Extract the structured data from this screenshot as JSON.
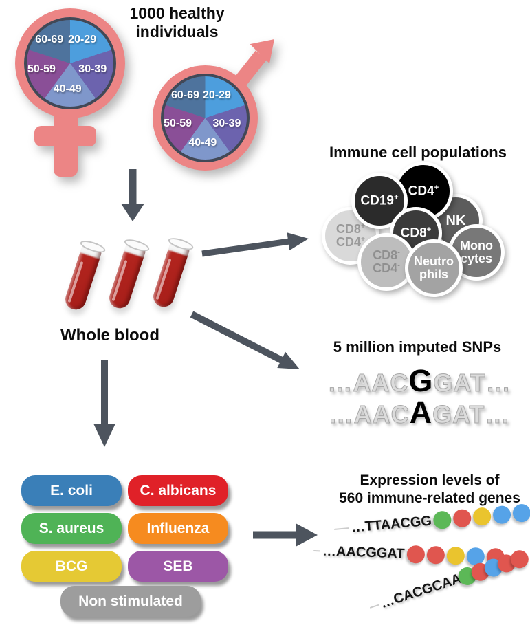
{
  "colors": {
    "pink": "#ec8585",
    "arrow": "#4d545e",
    "dot_palette": {
      "green": "#5cb857",
      "red": "#e0564f",
      "yellow": "#eac42e",
      "blue": "#56a3e8"
    }
  },
  "header": {
    "line1": "1000 healthy",
    "line2": "individuals"
  },
  "age_pie": {
    "slices": [
      {
        "label": "20-29",
        "color": "#4d9edd"
      },
      {
        "label": "30-39",
        "color": "#6c63ae"
      },
      {
        "label": "40-49",
        "color": "#7f97cb"
      },
      {
        "label": "50-59",
        "color": "#8a4f97"
      },
      {
        "label": "60-69",
        "color": "#4e739d"
      }
    ]
  },
  "whole_blood": {
    "label": "Whole blood"
  },
  "immune": {
    "title": "Immune cell populations",
    "cells": [
      {
        "id": "cd19",
        "color": "#2b2b2b",
        "text_color": "#ffffff",
        "lines": [
          {
            "text": "CD19",
            "sup": "+"
          }
        ]
      },
      {
        "id": "cd4",
        "color": "#000000",
        "text_color": "#ffffff",
        "lines": [
          {
            "text": "CD4",
            "sup": "+"
          }
        ]
      },
      {
        "id": "nk",
        "color": "#5c5c5c",
        "text_color": "#ffffff",
        "lines": [
          {
            "text": "NK",
            "sup": ""
          }
        ]
      },
      {
        "id": "cd8",
        "color": "#3b3b3b",
        "text_color": "#ffffff",
        "lines": [
          {
            "text": "CD8",
            "sup": "+"
          }
        ]
      },
      {
        "id": "cd8cd4pos",
        "color": "#d9d9d9",
        "text_color": "#9a9a9a",
        "lines": [
          {
            "text": "CD8",
            "sup": "+"
          },
          {
            "text": "CD4",
            "sup": "+"
          }
        ]
      },
      {
        "id": "monocytes",
        "color": "#787878",
        "text_color": "#ffffff",
        "lines": [
          {
            "text": "Mono",
            "sup": ""
          },
          {
            "text": "cytes",
            "sup": ""
          }
        ]
      },
      {
        "id": "cd8cd4neg",
        "color": "#bdbdbd",
        "text_color": "#8f8f8f",
        "lines": [
          {
            "text": "CD8",
            "sup": "-"
          },
          {
            "text": "CD4",
            "sup": "-"
          }
        ]
      },
      {
        "id": "neutrophils",
        "color": "#a3a3a3",
        "text_color": "#ffffff",
        "lines": [
          {
            "text": "Neutro",
            "sup": ""
          },
          {
            "text": "phils",
            "sup": ""
          }
        ]
      }
    ]
  },
  "snps": {
    "title": "5 million imputed SNPs",
    "rows": [
      {
        "pre": "…AAC",
        "variant": "G",
        "post": "GAT…"
      },
      {
        "pre": "…AAC",
        "variant": "A",
        "post": "GAT…"
      }
    ]
  },
  "stimuli": {
    "items": [
      {
        "label": "E. coli",
        "color": "#3a7fb8"
      },
      {
        "label": "C. albicans",
        "color": "#e02128"
      },
      {
        "label": "S. aureus",
        "color": "#4fb356"
      },
      {
        "label": "Influenza",
        "color": "#f68b1f"
      },
      {
        "label": "BCG",
        "color": "#e5c934"
      },
      {
        "label": "SEB",
        "color": "#9c57a6"
      },
      {
        "label": "Non stimulated",
        "color": "#9d9d9d"
      }
    ]
  },
  "expression": {
    "title_line1": "Expression levels of",
    "title_line2": "560 immune-related genes",
    "strands": [
      {
        "seq": "…TTAACGG",
        "dots": [
          "green",
          "red",
          "yellow",
          "blue",
          "blue"
        ]
      },
      {
        "seq": "…AACGGAT",
        "dots": [
          "red",
          "red",
          "yellow",
          "blue",
          "red"
        ]
      },
      {
        "seq": "…CACGCAA",
        "dots": [
          "green",
          "red",
          "blue",
          "red",
          "red"
        ]
      }
    ]
  }
}
